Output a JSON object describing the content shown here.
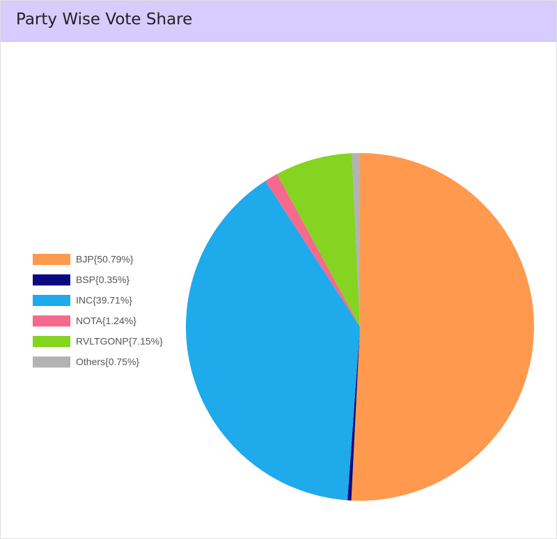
{
  "chart_data": {
    "type": "pie",
    "title": "Party Wise Vote Share",
    "categories": [
      "BJP{50.79%}",
      "BSP{0.35%}",
      "INC{39.71%}",
      "NOTA{1.24%}",
      "RVLTGONP{7.15%}",
      "Others{0.75%}"
    ],
    "values": [
      50.79,
      0.35,
      39.71,
      1.24,
      7.15,
      0.75
    ],
    "colors": [
      "#ff994d",
      "#0a0a80",
      "#1eaaeb",
      "#f56a8c",
      "#84d421",
      "#b3b3b3"
    ],
    "legend": "left"
  }
}
